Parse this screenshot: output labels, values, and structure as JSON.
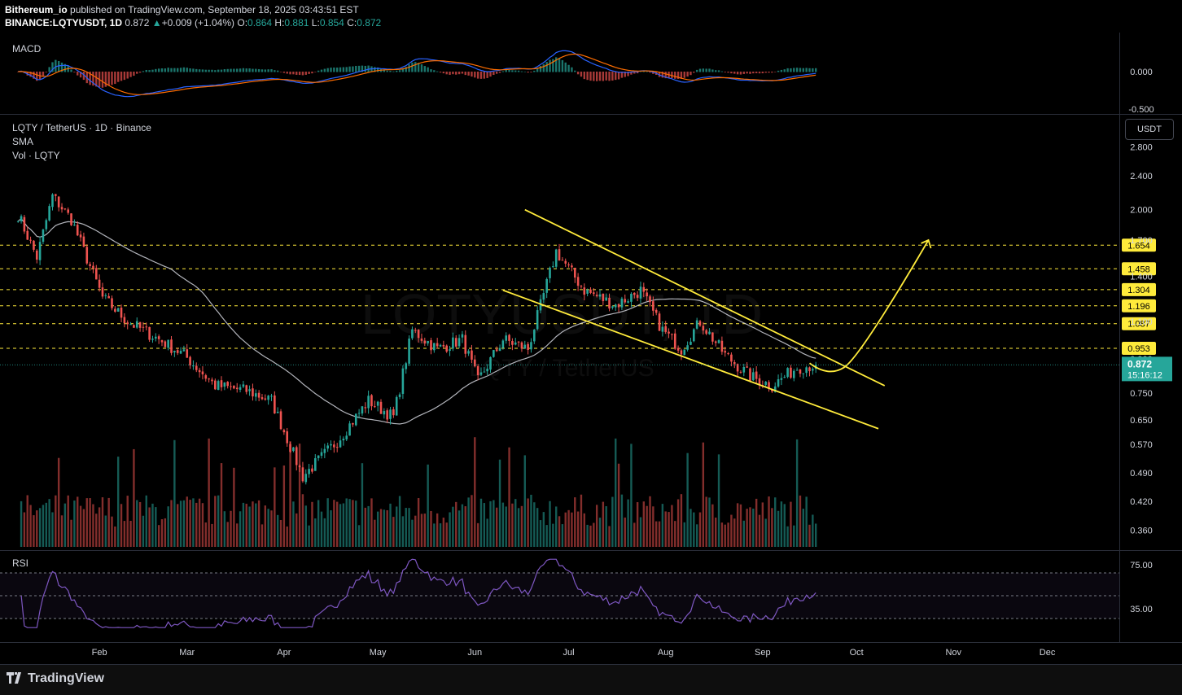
{
  "header": {
    "author": "Bithereum_io",
    "published": "published on TradingView.com, September 18, 2025 03:43:51 EST",
    "symbol": "BINANCE:LQTYUSDT, 1D",
    "price": "0.872",
    "change": "+0.009 (+1.04%)",
    "o_label": "O:",
    "o": "0.864",
    "h_label": "H:",
    "h": "0.881",
    "l_label": "L:",
    "l": "0.854",
    "c_label": "C:",
    "c": "0.872"
  },
  "macd": {
    "label": "MACD",
    "ticks": [
      "0.000",
      "-0.500"
    ]
  },
  "main": {
    "title": "LQTY / TetherUS · 1D · Binance",
    "sma_label": "SMA",
    "vol_label": "Vol · LQTY",
    "unit": "USDT",
    "watermark_1": "LQTYUSDT, 1D",
    "watermark_2": "LQTY / TetherUS",
    "current_price": "0.872",
    "countdown": "15:16:12"
  },
  "rsi": {
    "label": "RSI",
    "ticks": [
      "75.00",
      "35.00"
    ]
  },
  "footer": {
    "brand": "TradingView"
  },
  "colors": {
    "up": "#26a69a",
    "down": "#ef5350",
    "level": "#ffeb3b",
    "sma": "#d1d4dc",
    "rsi": "#7e57c2",
    "macd": "#2962ff",
    "signal": "#ff6d00"
  },
  "chart_data": {
    "type": "candlestick",
    "y_axis_ticks": [
      2.8,
      2.4,
      2.0,
      1.7,
      1.4,
      1.1,
      0.9,
      0.75,
      0.65,
      0.57,
      0.49,
      0.42,
      0.36
    ],
    "y_axis_labels": [
      "2.800",
      "2.400",
      "2.000",
      "1.700",
      "1.400",
      "1.100",
      "0.900",
      "0.750",
      "0.650",
      "0.570",
      "0.490",
      "0.420",
      "0.360"
    ],
    "x_axis_labels": [
      "Feb",
      "Mar",
      "Apr",
      "May",
      "Jun",
      "Jul",
      "Aug",
      "Sep",
      "Oct",
      "Nov",
      "Dec"
    ],
    "levels": [
      1.654,
      1.458,
      1.304,
      1.196,
      1.087,
      0.953
    ],
    "level_labels": [
      "1.654",
      "1.458",
      "1.304",
      "1.196",
      "1.087",
      "0.953"
    ],
    "price_path": [
      [
        "2025-01-06",
        1.95
      ],
      [
        "2025-01-12",
        1.55
      ],
      [
        "2025-01-17",
        2.15
      ],
      [
        "2025-01-23",
        1.9
      ],
      [
        "2025-02-02",
        1.25
      ],
      [
        "2025-02-10",
        1.1
      ],
      [
        "2025-02-20",
        1.0
      ],
      [
        "2025-02-28",
        0.92
      ],
      [
        "2025-03-10",
        0.78
      ],
      [
        "2025-03-20",
        0.76
      ],
      [
        "2025-03-28",
        0.72
      ],
      [
        "2025-04-07",
        0.48
      ],
      [
        "2025-04-18",
        0.58
      ],
      [
        "2025-04-28",
        0.72
      ],
      [
        "2025-05-06",
        0.66
      ],
      [
        "2025-05-12",
        1.05
      ],
      [
        "2025-05-20",
        0.95
      ],
      [
        "2025-05-28",
        1.0
      ],
      [
        "2025-06-02",
        0.8
      ],
      [
        "2025-06-10",
        1.0
      ],
      [
        "2025-06-18",
        0.95
      ],
      [
        "2025-06-27",
        1.6
      ],
      [
        "2025-07-06",
        1.3
      ],
      [
        "2025-07-16",
        1.2
      ],
      [
        "2025-07-24",
        1.3
      ],
      [
        "2025-07-31",
        1.05
      ],
      [
        "2025-08-06",
        0.95
      ],
      [
        "2025-08-12",
        1.1
      ],
      [
        "2025-08-20",
        0.92
      ],
      [
        "2025-08-28",
        0.82
      ],
      [
        "2025-09-04",
        0.78
      ],
      [
        "2025-09-12",
        0.86
      ],
      [
        "2025-09-18",
        0.872
      ]
    ],
    "falling_wedge": {
      "upper": [
        [
          "2025-06-17",
          2.0
        ],
        [
          "2025-10-10",
          0.78
        ]
      ],
      "lower": [
        [
          "2025-06-10",
          1.3
        ],
        [
          "2025-10-08",
          0.62
        ]
      ]
    },
    "projection": [
      [
        "2025-09-16",
        0.88
      ],
      [
        "2025-09-22",
        0.86
      ],
      [
        "2025-10-02",
        1.1
      ],
      [
        "2025-10-24",
        1.7
      ]
    ]
  }
}
